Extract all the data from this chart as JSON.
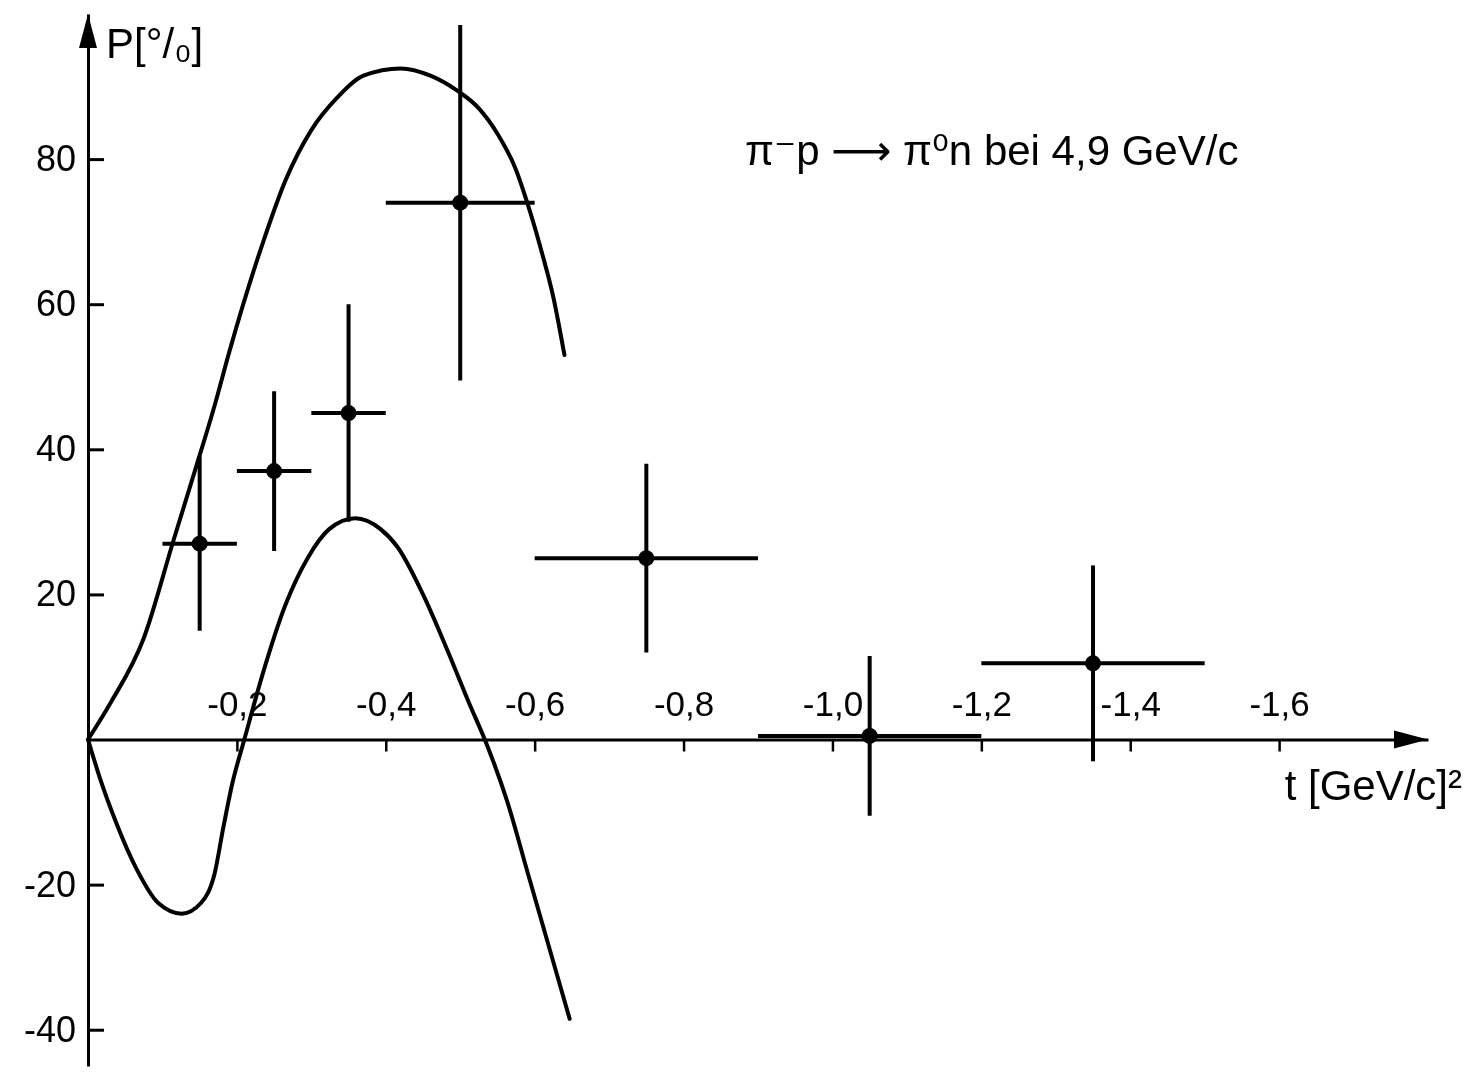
{
  "chart_data": {
    "type": "scatter",
    "title": "π⁻p ⟶ π⁰n   bei 4,9 GeV/c",
    "xlabel": "t [GeV/c]²",
    "ylabel": "P[°/₀]",
    "xlim": [
      0,
      -1.8
    ],
    "ylim": [
      -45,
      100
    ],
    "xticks": [
      {
        "value": -0.2,
        "label": "-0,2"
      },
      {
        "value": -0.4,
        "label": "-0,4"
      },
      {
        "value": -0.6,
        "label": "-0,6"
      },
      {
        "value": -0.8,
        "label": "-0,8"
      },
      {
        "value": -1.0,
        "label": "-1,0"
      },
      {
        "value": -1.2,
        "label": "-1,2"
      },
      {
        "value": -1.4,
        "label": "-1,4"
      },
      {
        "value": -1.6,
        "label": "-1,6"
      }
    ],
    "yticks": [
      -40,
      -20,
      20,
      40,
      60,
      80
    ],
    "series": [
      {
        "type": "line",
        "color": "#000000",
        "marker": "none",
        "line_style": "solid",
        "x": [
          0,
          -0.03,
          -0.075,
          -0.115,
          -0.145,
          -0.17,
          -0.19,
          -0.235,
          -0.265,
          -0.3,
          -0.335,
          -0.37,
          -0.42,
          -0.46,
          -0.495,
          -0.525,
          -0.55,
          -0.575,
          -0.59,
          -0.61,
          -0.625,
          -0.64
        ],
        "values": [
          0,
          5,
          14,
          27.5,
          37.5,
          46,
          53.5,
          68.5,
          77,
          84,
          88.5,
          91.5,
          92.5,
          91.5,
          89.5,
          87,
          83.5,
          78.5,
          74,
          67,
          61,
          53
        ]
      },
      {
        "type": "line",
        "color": "#000000",
        "marker": "none",
        "line_style": "solid",
        "x": [
          0,
          -0.015,
          -0.038,
          -0.066,
          -0.094,
          -0.126,
          -0.152,
          -0.17,
          -0.182,
          -0.194,
          -0.21,
          -0.236,
          -0.265,
          -0.295,
          -0.324,
          -0.359,
          -0.393,
          -0.416,
          -0.45,
          -0.484,
          -0.512,
          -0.535,
          -0.563,
          -0.591,
          -0.619,
          -0.647
        ],
        "values": [
          0,
          -5,
          -11.5,
          -18,
          -22.5,
          -24,
          -22.5,
          -18.5,
          -12,
          -6,
          0,
          9.5,
          18.5,
          25,
          29,
          30.5,
          29,
          26.5,
          20,
          12,
          5,
          -0.5,
          -8.5,
          -18.5,
          -28.5,
          -38.5
        ]
      },
      {
        "type": "scatter",
        "color": "#000000",
        "marker": "circle",
        "x": [
          -0.15,
          -0.25,
          -0.35,
          -0.5,
          -0.75,
          -1.05,
          -1.35
        ],
        "values": [
          27,
          37,
          45,
          74,
          25,
          0.5,
          10.5
        ],
        "errors": [
          12,
          11,
          15,
          24.5,
          13,
          11,
          13.5
        ],
        "xerrors": [
          0.05,
          0.05,
          0.05,
          0.1,
          0.15,
          0.15,
          0.15
        ]
      }
    ]
  }
}
